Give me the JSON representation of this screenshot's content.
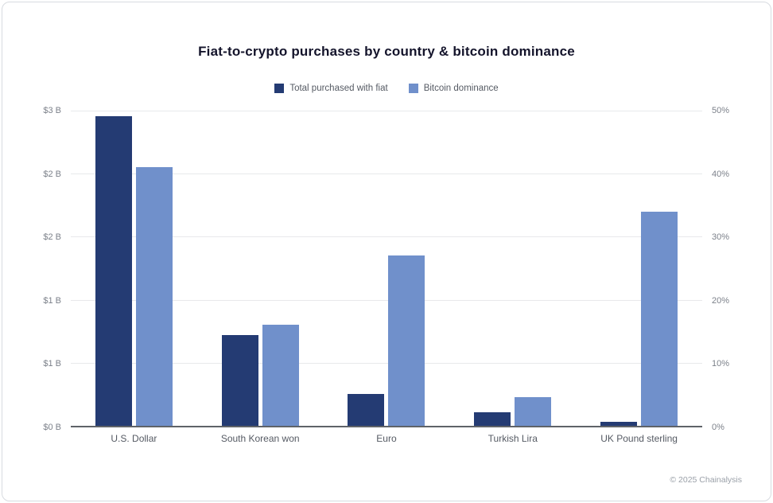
{
  "chart_data": {
    "type": "bar",
    "title": "Fiat-to-crypto purchases by country & bitcoin dominance",
    "categories": [
      "U.S. Dollar",
      "South Korean won",
      "Euro",
      "Turkish Lira",
      "UK Pound sterling"
    ],
    "series": [
      {
        "name": "Total purchased with fiat",
        "axis": "left",
        "unit": "$B",
        "color": "#243b73",
        "values": [
          2.95,
          0.86,
          0.3,
          0.13,
          0.04
        ]
      },
      {
        "name": "Bitcoin dominance",
        "axis": "right",
        "unit": "%",
        "color": "#7090cb",
        "values": [
          41,
          16,
          27,
          4.5,
          34
        ]
      }
    ],
    "left_axis": {
      "ticks": [
        "$3 B",
        "$2 B",
        "$2 B",
        "$1 B",
        "$1 B",
        "$0 B"
      ],
      "max": 3,
      "min": 0
    },
    "right_axis": {
      "ticks": [
        "50%",
        "40%",
        "30%",
        "20%",
        "10%",
        "0%"
      ],
      "max": 50,
      "min": 0
    },
    "grid": true,
    "legend_position": "top",
    "footer": "© 2025 Chainalysis"
  }
}
